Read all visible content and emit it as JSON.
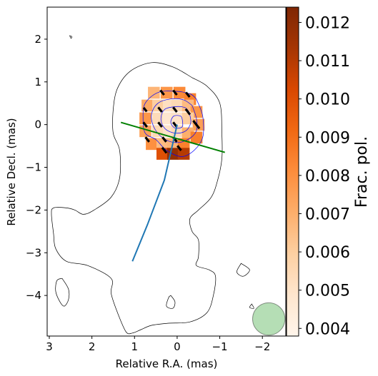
{
  "chart_data": {
    "type": "image",
    "xlabel": "Relative R.A. (mas)",
    "ylabel": "Relative Decl. (mas)",
    "xlim": [
      3.05,
      -2.55
    ],
    "ylim": [
      -4.95,
      2.75
    ],
    "x_ticks": [
      3,
      2,
      1,
      0,
      -1,
      -2
    ],
    "x_tick_labels": [
      "3",
      "2",
      "1",
      "0",
      "−1",
      "−2"
    ],
    "y_ticks": [
      2,
      1,
      0,
      -1,
      -2,
      -3,
      -4
    ],
    "y_tick_labels": [
      "2",
      "1",
      "0",
      "−1",
      "−2",
      "−3",
      "−4"
    ],
    "colorbar": {
      "label": "Frac. pol.",
      "range": [
        0.0038,
        0.0124
      ],
      "ticks": [
        0.004,
        0.005,
        0.006,
        0.007,
        0.008,
        0.009,
        0.01,
        0.011,
        0.012
      ],
      "tick_labels": [
        "0.004",
        "0.005",
        "0.006",
        "0.007",
        "0.008",
        "0.009",
        "0.010",
        "0.011",
        "0.012"
      ],
      "colormap": "Oranges"
    },
    "lines": [
      {
        "color": "#1f77b4",
        "points": [
          [
            0.0,
            0.0
          ],
          [
            0.3,
            -1.3
          ],
          [
            0.7,
            -2.35
          ],
          [
            1.05,
            -3.2
          ]
        ]
      },
      {
        "color": "#008000",
        "points": [
          [
            1.32,
            0.05
          ],
          [
            -1.12,
            -0.65
          ]
        ]
      }
    ],
    "beam": {
      "x": -2.15,
      "y": -4.55,
      "radius": 0.38,
      "color": "#2ca02c"
    },
    "contours": {
      "outer": [
        [
          -0.35,
          1.1
        ],
        [
          -0.7,
          0.9
        ],
        [
          -1.0,
          0.5
        ],
        [
          -1.05,
          -0.2
        ],
        [
          -1.05,
          -0.8
        ],
        [
          -0.95,
          -1.3
        ],
        [
          -0.8,
          -1.7
        ],
        [
          -0.5,
          -2.0
        ],
        [
          -0.3,
          -2.2
        ],
        [
          -0.35,
          -2.5
        ],
        [
          -0.5,
          -2.7
        ],
        [
          -0.5,
          -3.1
        ],
        [
          -0.45,
          -3.3
        ],
        [
          -0.75,
          -3.4
        ],
        [
          -0.9,
          -3.55
        ],
        [
          -0.85,
          -4.0
        ],
        [
          -0.7,
          -4.4
        ],
        [
          -0.3,
          -4.62
        ],
        [
          0.2,
          -4.65
        ],
        [
          0.6,
          -4.7
        ],
        [
          0.85,
          -4.8
        ],
        [
          1.05,
          -4.88
        ],
        [
          1.2,
          -4.85
        ],
        [
          1.4,
          -4.4
        ],
        [
          1.55,
          -3.95
        ],
        [
          1.55,
          -3.6
        ],
        [
          2.1,
          -3.3
        ],
        [
          2.6,
          -3.2
        ],
        [
          2.85,
          -2.9
        ],
        [
          2.9,
          -2.55
        ],
        [
          2.95,
          -2.1
        ],
        [
          2.9,
          -1.95
        ],
        [
          2.6,
          -1.95
        ],
        [
          2.4,
          -2.0
        ],
        [
          2.2,
          -2.1
        ],
        [
          1.95,
          -2.0
        ],
        [
          1.55,
          -1.7
        ],
        [
          1.35,
          -1.25
        ],
        [
          1.35,
          -0.6
        ],
        [
          1.5,
          -0.2
        ],
        [
          1.5,
          0.35
        ],
        [
          1.4,
          0.85
        ],
        [
          1.1,
          1.25
        ],
        [
          0.6,
          1.45
        ],
        [
          0.1,
          1.35
        ],
        [
          -0.35,
          1.1
        ]
      ],
      "blue_outer": [
        [
          -0.45,
          0.6
        ],
        [
          -0.6,
          0.2
        ],
        [
          -0.6,
          -0.3
        ],
        [
          -0.4,
          -0.6
        ],
        [
          -0.1,
          -0.75
        ],
        [
          0.25,
          -0.6
        ],
        [
          0.5,
          -0.35
        ],
        [
          0.75,
          -0.2
        ],
        [
          0.8,
          0.15
        ],
        [
          0.75,
          0.5
        ],
        [
          0.45,
          0.75
        ],
        [
          0.05,
          0.78
        ],
        [
          -0.3,
          0.72
        ],
        [
          -0.45,
          0.6
        ]
      ],
      "blue_mid": [
        [
          -0.35,
          0.45
        ],
        [
          -0.45,
          0.15
        ],
        [
          -0.45,
          -0.15
        ],
        [
          -0.25,
          -0.35
        ],
        [
          0.05,
          -0.42
        ],
        [
          0.35,
          -0.3
        ],
        [
          0.55,
          -0.05
        ],
        [
          0.6,
          0.25
        ],
        [
          0.45,
          0.5
        ],
        [
          0.15,
          0.6
        ],
        [
          -0.15,
          0.58
        ],
        [
          -0.35,
          0.45
        ]
      ],
      "blue_inner": [
        [
          -0.28,
          0.3
        ],
        [
          -0.32,
          0.05
        ],
        [
          -0.2,
          -0.15
        ],
        [
          0.05,
          -0.2
        ],
        [
          0.28,
          -0.1
        ],
        [
          0.38,
          0.12
        ],
        [
          0.3,
          0.35
        ],
        [
          0.05,
          0.42
        ],
        [
          -0.18,
          0.4
        ],
        [
          -0.28,
          0.3
        ]
      ],
      "blue_core": [
        [
          -0.12,
          0.12
        ],
        [
          -0.12,
          -0.05
        ],
        [
          0.05,
          -0.08
        ],
        [
          0.15,
          0.05
        ],
        [
          0.08,
          0.2
        ],
        [
          -0.08,
          0.2
        ],
        [
          -0.12,
          0.12
        ]
      ],
      "islands": [
        [
          [
            2.52,
            2.08
          ],
          [
            2.49,
            2.02
          ],
          [
            2.47,
            2.06
          ],
          [
            2.52,
            2.08
          ]
        ],
        [
          [
            2.7,
            -3.6
          ],
          [
            2.55,
            -3.85
          ],
          [
            2.55,
            -4.1
          ],
          [
            2.65,
            -4.25
          ],
          [
            2.75,
            -4.15
          ],
          [
            2.85,
            -3.9
          ],
          [
            2.82,
            -3.65
          ],
          [
            2.7,
            -3.6
          ]
        ],
        [
          [
            -1.5,
            -3.25
          ],
          [
            -1.7,
            -3.4
          ],
          [
            -1.55,
            -3.55
          ],
          [
            -1.4,
            -3.45
          ],
          [
            -1.5,
            -3.25
          ]
        ],
        [
          [
            0.15,
            -4.0
          ],
          [
            0.05,
            -4.15
          ],
          [
            0.1,
            -4.3
          ],
          [
            0.25,
            -4.25
          ],
          [
            0.2,
            -4.05
          ],
          [
            0.15,
            -4.0
          ]
        ],
        [
          [
            -1.75,
            -4.2
          ],
          [
            -1.7,
            -4.28
          ],
          [
            -1.8,
            -4.3
          ],
          [
            -1.75,
            -4.2
          ]
        ]
      ]
    },
    "polarization_ticks": [
      [
        0.35,
        0.75,
        0.6
      ],
      [
        0.05,
        0.75,
        0.6
      ],
      [
        -0.25,
        0.7,
        0.6
      ],
      [
        0.75,
        0.35,
        0.5
      ],
      [
        0.4,
        0.35,
        0.6
      ],
      [
        0.05,
        0.35,
        0.6
      ],
      [
        -0.25,
        0.3,
        0.7
      ],
      [
        0.75,
        0.0,
        0.6
      ],
      [
        0.4,
        0.0,
        0.6
      ],
      [
        0.05,
        0.0,
        0.6
      ],
      [
        -0.45,
        0.0,
        1.0
      ],
      [
        0.7,
        -0.35,
        0.6
      ],
      [
        0.3,
        -0.35,
        0.6
      ],
      [
        0.05,
        -0.35,
        0.6
      ],
      [
        0.3,
        -0.6,
        0.7
      ],
      [
        -0.05,
        -0.55,
        0.6
      ]
    ],
    "polarization_patch": [
      [
        0.55,
        0.75,
        0.0068
      ],
      [
        0.25,
        0.75,
        0.0078
      ],
      [
        -0.05,
        0.75,
        0.0082
      ],
      [
        -0.3,
        0.6,
        0.0085
      ],
      [
        0.7,
        0.45,
        0.0072
      ],
      [
        0.45,
        0.45,
        0.006
      ],
      [
        0.2,
        0.45,
        0.0052
      ],
      [
        0.0,
        0.45,
        0.0055
      ],
      [
        -0.25,
        0.45,
        0.0066
      ],
      [
        -0.45,
        0.3,
        0.0078
      ],
      [
        0.75,
        0.15,
        0.0078
      ],
      [
        0.45,
        0.15,
        0.0054
      ],
      [
        0.2,
        0.15,
        0.0048
      ],
      [
        0.0,
        0.15,
        0.005
      ],
      [
        -0.25,
        0.15,
        0.006
      ],
      [
        -0.5,
        0.0,
        0.0075
      ],
      [
        0.75,
        -0.15,
        0.0074
      ],
      [
        0.45,
        -0.15,
        0.0055
      ],
      [
        0.2,
        -0.15,
        0.005
      ],
      [
        0.0,
        -0.15,
        0.0054
      ],
      [
        -0.25,
        -0.2,
        0.007
      ],
      [
        -0.45,
        -0.3,
        0.0085
      ],
      [
        0.6,
        -0.45,
        0.008
      ],
      [
        0.35,
        -0.45,
        0.0066
      ],
      [
        0.1,
        -0.45,
        0.0068
      ],
      [
        -0.15,
        -0.45,
        0.0085
      ],
      [
        0.35,
        -0.68,
        0.01
      ],
      [
        0.1,
        -0.68,
        0.0118
      ],
      [
        -0.15,
        -0.68,
        0.011
      ]
    ]
  }
}
